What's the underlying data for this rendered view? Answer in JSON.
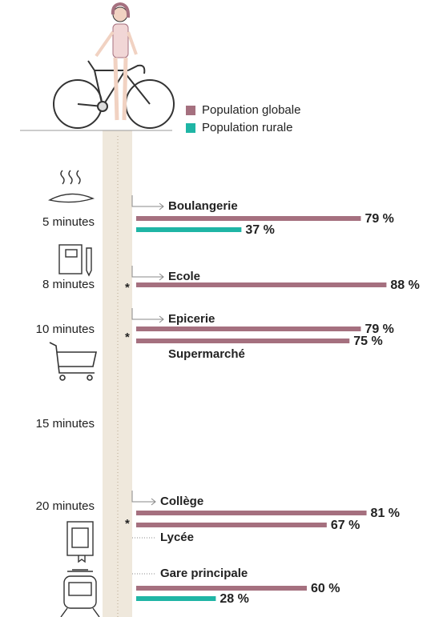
{
  "chart_data": {
    "type": "bar",
    "orientation": "horizontal",
    "categories": [
      "Boulangerie",
      "Ecole",
      "Epicerie",
      "Supermarché",
      "Collège",
      "Lycée",
      "Gare principale"
    ],
    "series": [
      {
        "name": "Population globale",
        "color": "#a5707f",
        "values": [
          79,
          88,
          79,
          75,
          81,
          67,
          60
        ],
        "value_labels": [
          "79 %",
          "88 %",
          "79 %",
          "75 %",
          "81 %",
          "67 %",
          "60 %"
        ]
      },
      {
        "name": "Population rurale",
        "color": "#1fb5a5",
        "values": [
          37,
          null,
          null,
          null,
          null,
          null,
          28
        ],
        "value_labels": [
          "37 %",
          null,
          null,
          null,
          null,
          null,
          "28 %"
        ]
      }
    ],
    "times": [
      "5 minutes",
      "8 minutes",
      "10 minutes",
      "15 minutes",
      "20 minutes"
    ],
    "note_marker": "*",
    "xlim": [
      0,
      100
    ]
  }
}
